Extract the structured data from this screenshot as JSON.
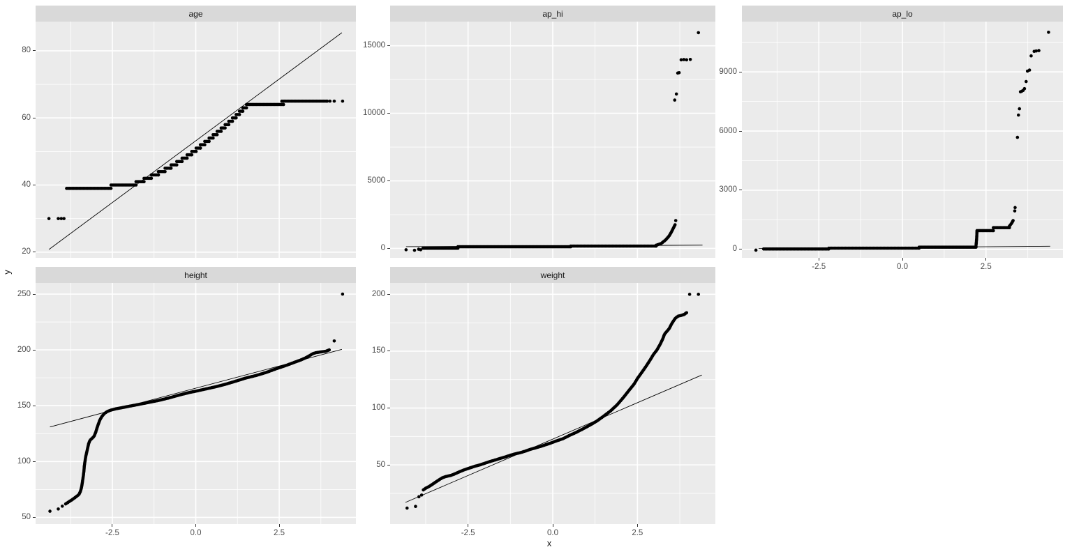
{
  "figure": {
    "x_label": "x",
    "y_label": "y",
    "colors": {
      "panel_bg": "#ebebeb",
      "strip_bg": "#d9d9d9",
      "grid": "#ffffff",
      "point": "#000000",
      "qq_line": "#000000",
      "tick_text": "#4d4d4d",
      "strip_text": "#1a1a1a",
      "tick_mark": "#333333"
    },
    "x_ticks": {
      "values": [
        -2.5,
        0,
        2.5
      ],
      "labels": [
        "-2.5",
        "0.0",
        "2.5"
      ]
    },
    "x_minor": [
      -3.75,
      -1.25,
      1.25,
      3.75
    ],
    "xlim": [
      -4.8,
      4.8
    ]
  },
  "chart_data": [
    {
      "type": "scatter",
      "title": "age",
      "col": 0,
      "row": 0,
      "show_x_axis": false,
      "ylim": [
        18.3,
        88.7
      ],
      "y_major": [
        20,
        40,
        60,
        80
      ],
      "y_minor": [
        30,
        50,
        70
      ],
      "y_tick_labels": [
        "20",
        "40",
        "60",
        "80"
      ],
      "qq_line": [
        [
          -4.4,
          20.8
        ],
        [
          4.38,
          85.4
        ]
      ],
      "runs": [
        [
          -3.87,
          -2.54,
          39
        ],
        [
          -2.54,
          -1.79,
          40
        ],
        [
          -1.79,
          -1.55,
          41
        ],
        [
          -1.55,
          -1.33,
          42
        ],
        [
          -1.33,
          -1.12,
          43
        ],
        [
          -1.12,
          -0.92,
          44
        ],
        [
          -0.92,
          -0.74,
          45
        ],
        [
          -0.74,
          -0.57,
          46
        ],
        [
          -0.57,
          -0.41,
          47
        ],
        [
          -0.41,
          -0.26,
          48
        ],
        [
          -0.26,
          -0.12,
          49
        ],
        [
          -0.12,
          0.01,
          50
        ],
        [
          0.01,
          0.14,
          51
        ],
        [
          0.14,
          0.27,
          52
        ],
        [
          0.27,
          0.4,
          53
        ],
        [
          0.4,
          0.52,
          54
        ],
        [
          0.52,
          0.64,
          55
        ],
        [
          0.64,
          0.76,
          56
        ],
        [
          0.76,
          0.88,
          57
        ],
        [
          0.88,
          0.99,
          58
        ],
        [
          0.99,
          1.1,
          59
        ],
        [
          1.1,
          1.21,
          60
        ],
        [
          1.21,
          1.31,
          61
        ],
        [
          1.31,
          1.41,
          62
        ],
        [
          1.41,
          1.52,
          63
        ],
        [
          1.52,
          2.63,
          64
        ],
        [
          2.58,
          3.94,
          65
        ]
      ],
      "curves": [],
      "dots": [
        [
          -4.4,
          30
        ],
        [
          -4.12,
          30
        ],
        [
          -4.03,
          30
        ],
        [
          -3.95,
          30
        ],
        [
          4.02,
          65
        ],
        [
          4.15,
          65
        ],
        [
          4.4,
          65
        ]
      ]
    },
    {
      "type": "scatter",
      "title": "ap_hi",
      "col": 1,
      "row": 0,
      "show_x_axis": false,
      "ylim": [
        -700,
        16790
      ],
      "y_major": [
        0,
        5000,
        10000,
        15000
      ],
      "y_minor": [
        2500,
        7500,
        12500
      ],
      "y_tick_labels": [
        "0",
        "5000",
        "10000",
        "15000"
      ],
      "qq_line": [
        [
          -4.33,
          130
        ],
        [
          4.42,
          240
        ]
      ],
      "runs": [
        [
          -3.83,
          -2.8,
          10
        ],
        [
          -2.8,
          0.53,
          120
        ],
        [
          0.53,
          3.05,
          170
        ]
      ],
      "curves": [
        [
          [
            3.05,
            230
          ],
          [
            3.2,
            360
          ],
          [
            3.33,
            620
          ],
          [
            3.43,
            900
          ],
          [
            3.5,
            1200
          ],
          [
            3.56,
            1500
          ],
          [
            3.61,
            1750
          ]
        ]
      ],
      "dots": [
        [
          -4.33,
          -100
        ],
        [
          -4.08,
          -140
        ],
        [
          -3.96,
          -60
        ],
        [
          -3.9,
          -100
        ],
        [
          3.63,
          2060
        ],
        [
          3.6,
          10980
        ],
        [
          3.65,
          11430
        ],
        [
          3.69,
          12980
        ],
        [
          3.73,
          13010
        ],
        [
          3.79,
          13960
        ],
        [
          3.87,
          13980
        ],
        [
          3.95,
          13960
        ],
        [
          4.06,
          13990
        ],
        [
          4.3,
          15970
        ]
      ]
    },
    {
      "type": "scatter",
      "title": "ap_lo",
      "col": 2,
      "row": 0,
      "show_x_axis": true,
      "ylim": [
        -430,
        11550
      ],
      "y_major": [
        0,
        3000,
        6000,
        9000
      ],
      "y_minor": [
        1500,
        4500,
        7500,
        10500
      ],
      "y_tick_labels": [
        "0",
        "3000",
        "6000",
        "9000"
      ],
      "qq_line": [
        [
          -4.3,
          40
        ],
        [
          4.42,
          160
        ]
      ],
      "runs": [
        [
          -4.15,
          -2.2,
          20
        ],
        [
          -2.2,
          0.5,
          60
        ],
        [
          0.5,
          2.2,
          110
        ],
        [
          2.23,
          2.72,
          950
        ],
        [
          2.72,
          3.2,
          1100
        ]
      ],
      "curves": [
        [
          [
            2.2,
            160
          ],
          [
            2.22,
            550
          ],
          [
            2.23,
            880
          ]
        ],
        [
          [
            3.2,
            1180
          ],
          [
            3.27,
            1330
          ],
          [
            3.31,
            1460
          ]
        ]
      ],
      "dots": [
        [
          -4.38,
          -40
        ],
        [
          3.36,
          1950
        ],
        [
          3.37,
          2120
        ],
        [
          3.44,
          5680
        ],
        [
          3.47,
          6810
        ],
        [
          3.5,
          7130
        ],
        [
          3.53,
          7990
        ],
        [
          3.57,
          8020
        ],
        [
          3.61,
          8060
        ],
        [
          3.65,
          8150
        ],
        [
          3.7,
          8510
        ],
        [
          3.74,
          9040
        ],
        [
          3.8,
          9090
        ],
        [
          3.85,
          9810
        ],
        [
          3.94,
          10040
        ],
        [
          4.0,
          10060
        ],
        [
          4.08,
          10080
        ],
        [
          4.37,
          11010
        ]
      ]
    },
    {
      "type": "scatter",
      "title": "height",
      "col": 0,
      "row": 1,
      "show_x_axis": true,
      "ylim": [
        44,
        260
      ],
      "y_major": [
        50,
        100,
        150,
        200,
        250
      ],
      "y_minor": [
        75,
        125,
        175,
        225
      ],
      "y_tick_labels": [
        "50",
        "100",
        "150",
        "200",
        "250"
      ],
      "qq_line": [
        [
          -4.37,
          131
        ],
        [
          4.38,
          200.5
        ]
      ],
      "runs": [],
      "curves": [
        [
          [
            -3.9,
            62
          ],
          [
            -3.8,
            64
          ],
          [
            -3.72,
            65.5
          ],
          [
            -3.65,
            67
          ],
          [
            -3.57,
            68.8
          ],
          [
            -3.5,
            70.5
          ],
          [
            -3.46,
            73
          ],
          [
            -3.43,
            76
          ],
          [
            -3.41,
            79
          ],
          [
            -3.39,
            83
          ],
          [
            -3.37,
            87
          ],
          [
            -3.35,
            92
          ],
          [
            -3.34,
            96
          ],
          [
            -3.32,
            100
          ],
          [
            -3.3,
            104
          ],
          [
            -3.27,
            108
          ],
          [
            -3.24,
            112
          ],
          [
            -3.21,
            116
          ],
          [
            -3.17,
            119
          ],
          [
            -3.1,
            121
          ],
          [
            -3.05,
            122.5
          ],
          [
            -3.0,
            126
          ],
          [
            -2.96,
            130
          ],
          [
            -2.92,
            133.5
          ],
          [
            -2.87,
            137.5
          ],
          [
            -2.81,
            140.5
          ],
          [
            -2.74,
            143
          ],
          [
            -2.65,
            144.8
          ],
          [
            -2.55,
            146
          ],
          [
            -2.4,
            147.2
          ],
          [
            -2.2,
            148.3
          ],
          [
            -2.0,
            149.5
          ],
          [
            -1.7,
            151.2
          ],
          [
            -1.4,
            153
          ],
          [
            -1.1,
            154.8
          ],
          [
            -0.8,
            157
          ],
          [
            -0.5,
            159.5
          ],
          [
            -0.2,
            161.8
          ],
          [
            0,
            163
          ],
          [
            0.3,
            165
          ],
          [
            0.6,
            167
          ],
          [
            0.9,
            169.3
          ],
          [
            1.2,
            172
          ],
          [
            1.5,
            174.8
          ],
          [
            1.8,
            177
          ],
          [
            2.1,
            179.7
          ],
          [
            2.4,
            183
          ],
          [
            2.7,
            186
          ],
          [
            2.95,
            188.8
          ],
          [
            3.15,
            191
          ],
          [
            3.3,
            193
          ],
          [
            3.42,
            195
          ],
          [
            3.5,
            196.5
          ],
          [
            3.6,
            197.5
          ],
          [
            3.75,
            198.2
          ],
          [
            3.9,
            198.8
          ],
          [
            4.0,
            200
          ]
        ]
      ],
      "dots": [
        [
          -4.37,
          55.5
        ],
        [
          -4.12,
          57.5
        ],
        [
          -4.0,
          60
        ],
        [
          4.15,
          208
        ],
        [
          4.4,
          250
        ]
      ]
    },
    {
      "type": "scatter",
      "title": "weight",
      "col": 1,
      "row": 1,
      "show_x_axis": true,
      "ylim": [
        -2,
        210
      ],
      "y_major": [
        50,
        100,
        150,
        200
      ],
      "y_minor": [
        25,
        75,
        125,
        175
      ],
      "y_tick_labels": [
        "50",
        "100",
        "150",
        "200"
      ],
      "qq_line": [
        [
          -4.35,
          17
        ],
        [
          4.4,
          129
        ]
      ],
      "runs": [],
      "curves": [
        [
          [
            -3.82,
            28
          ],
          [
            -3.75,
            29.5
          ],
          [
            -3.65,
            31
          ],
          [
            -3.55,
            33
          ],
          [
            -3.45,
            35
          ],
          [
            -3.35,
            37
          ],
          [
            -3.25,
            38.8
          ],
          [
            -3.15,
            39.8
          ],
          [
            -3.0,
            40.8
          ],
          [
            -2.9,
            42
          ],
          [
            -2.75,
            44
          ],
          [
            -2.6,
            45.8
          ],
          [
            -2.45,
            47.3
          ],
          [
            -2.3,
            48.8
          ],
          [
            -2.15,
            50
          ],
          [
            -2.0,
            51.5
          ],
          [
            -1.85,
            53
          ],
          [
            -1.7,
            54.3
          ],
          [
            -1.55,
            55.7
          ],
          [
            -1.4,
            57
          ],
          [
            -1.25,
            58.5
          ],
          [
            -1.1,
            59.8
          ],
          [
            -0.95,
            60.8
          ],
          [
            -0.8,
            62.2
          ],
          [
            -0.65,
            63.8
          ],
          [
            -0.5,
            65
          ],
          [
            -0.35,
            66.3
          ],
          [
            -0.2,
            67.8
          ],
          [
            -0.05,
            69.3
          ],
          [
            0.1,
            71
          ],
          [
            0.3,
            73
          ],
          [
            0.5,
            76
          ],
          [
            0.7,
            78.7
          ],
          [
            0.9,
            81.8
          ],
          [
            1.1,
            85
          ],
          [
            1.3,
            88.5
          ],
          [
            1.5,
            92.8
          ],
          [
            1.7,
            97.3
          ],
          [
            1.9,
            102.8
          ],
          [
            2.1,
            109.8
          ],
          [
            2.25,
            115.5
          ],
          [
            2.4,
            121
          ],
          [
            2.5,
            126
          ],
          [
            2.62,
            131
          ],
          [
            2.75,
            136.5
          ],
          [
            2.87,
            142
          ],
          [
            2.97,
            147
          ],
          [
            3.07,
            150.8
          ],
          [
            3.17,
            156
          ],
          [
            3.25,
            161
          ],
          [
            3.3,
            165
          ],
          [
            3.38,
            167.8
          ],
          [
            3.44,
            170
          ],
          [
            3.5,
            173.5
          ],
          [
            3.55,
            176
          ],
          [
            3.62,
            179
          ],
          [
            3.7,
            180.8
          ],
          [
            3.8,
            181.5
          ],
          [
            3.88,
            182.3
          ],
          [
            3.95,
            183.8
          ]
        ]
      ],
      "dots": [
        [
          -4.3,
          12
        ],
        [
          -4.05,
          13.5
        ],
        [
          -3.95,
          22
        ],
        [
          -3.87,
          23.5
        ],
        [
          4.04,
          200
        ],
        [
          4.3,
          200
        ]
      ]
    }
  ]
}
